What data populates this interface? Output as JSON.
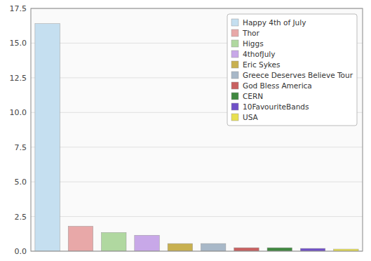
{
  "chart_data": {
    "type": "bar",
    "categories": [
      "Happy 4th of July",
      "Thor",
      "Higgs",
      "4thofJuly",
      "Eric Sykes",
      "Greece Deserves Believe Tour",
      "God Bless America",
      "CERN",
      "10FavouriteBands",
      "USA"
    ],
    "values": [
      16.4,
      1.8,
      1.35,
      1.15,
      0.55,
      0.55,
      0.25,
      0.25,
      0.2,
      0.15
    ],
    "colors": [
      "#c5dff0",
      "#e8a8a8",
      "#b0d8a0",
      "#c8a8e8",
      "#c8b050",
      "#a8b8c8",
      "#c86060",
      "#408840",
      "#7050c8",
      "#e8e050"
    ],
    "ylim": [
      0,
      17.5
    ],
    "yticks": [
      {
        "value": 0,
        "label": "0.0"
      },
      2.5,
      {
        "value": 5,
        "label": "5.0"
      },
      7.5,
      {
        "value": 10,
        "label": "10.0"
      },
      12.5,
      {
        "value": 15,
        "label": "15.0"
      },
      17.5
    ],
    "grid": true,
    "legend": "upper right",
    "tick_labels": "y"
  }
}
